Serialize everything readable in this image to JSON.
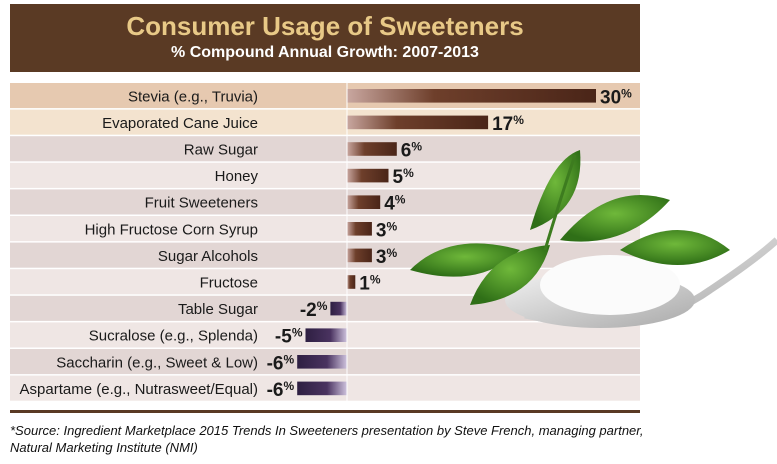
{
  "header": {
    "title": "Consumer Usage of Sweeteners",
    "subtitle": "% Compound Annual Growth: 2007-2013"
  },
  "source": "*Source: Ingredient Marketplace 2015 Trends In Sweeteners presentation by Steve French, managing partner, Natural Marketing Institute (NMI)",
  "colors": {
    "header_bg": "#5a3a24",
    "title_text": "#e8c987",
    "positive_bar": "#6e3f2b",
    "negative_bar": "#4a3360",
    "row_band_light": "#efe6e4",
    "row_band_dark": "#e2d6d4",
    "highlight_row": "#e8c9a8"
  },
  "chart_data": {
    "type": "bar",
    "orientation": "horizontal",
    "title": "Consumer Usage of Sweeteners",
    "subtitle": "% Compound Annual Growth: 2007-2013",
    "categories": [
      "Stevia (e.g., Truvia)",
      "Evaporated Cane Juice",
      "Raw Sugar",
      "Honey",
      "Fruit Sweeteners",
      "High Fructose Corn Syrup",
      "Sugar Alcohols",
      "Fructose",
      "Table Sugar",
      "Sucralose (e.g., Splenda)",
      "Saccharin (e.g., Sweet & Low)",
      "Aspartame (e.g., Nutrasweet/Equal)"
    ],
    "values": [
      30,
      17,
      6,
      5,
      4,
      3,
      3,
      1,
      -2,
      -5,
      -6,
      -6
    ],
    "value_labels": [
      "30",
      "17",
      "6",
      "5",
      "4",
      "3",
      "3",
      "1",
      "-2",
      "-5",
      "-6",
      "-6"
    ],
    "value_suffix": "%",
    "xlim": [
      -6,
      30
    ],
    "legend": "none",
    "grid": false
  }
}
